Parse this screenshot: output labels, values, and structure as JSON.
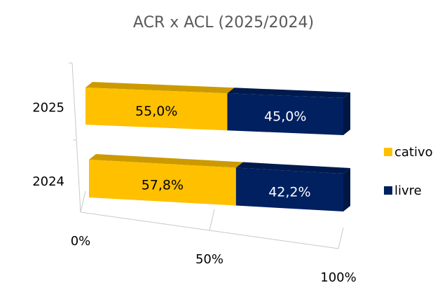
{
  "chart_data": {
    "type": "bar3d_stacked_horizontal",
    "title": "ACR x ACL (2025/2024)",
    "categories": [
      "2025",
      "2024"
    ],
    "series": [
      {
        "name": "cativo",
        "color": "#FFC000",
        "values": [
          55.0,
          57.8
        ],
        "value_labels": [
          "55,0%",
          "57,8%"
        ]
      },
      {
        "name": "livre",
        "color": "#002060",
        "values": [
          45.0,
          42.2
        ],
        "value_labels": [
          "45,0%",
          "42,2%"
        ]
      }
    ],
    "xlim": [
      0,
      100
    ],
    "xticks": [
      {
        "value": 0,
        "label": "0%"
      },
      {
        "value": 50,
        "label": "50%"
      },
      {
        "value": 100,
        "label": "100%"
      }
    ],
    "legend": "right"
  }
}
